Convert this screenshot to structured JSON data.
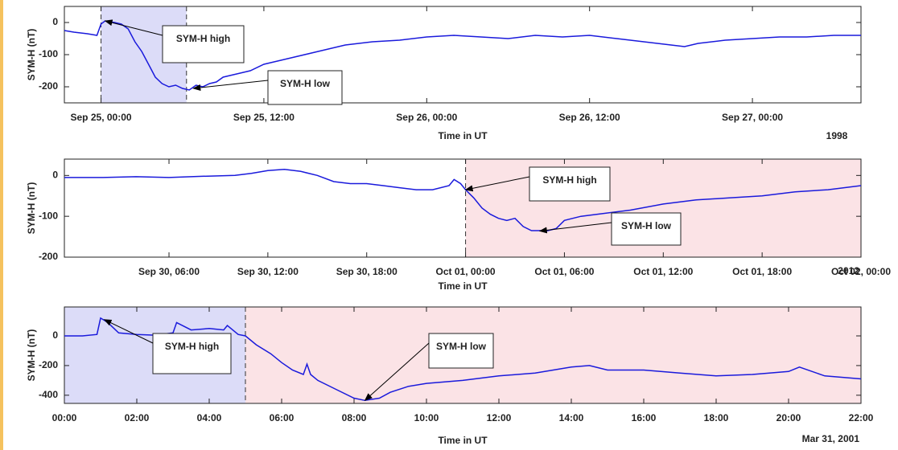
{
  "chart_data": [
    {
      "type": "line",
      "ylabel": "SYM-H (nT)",
      "xlabel": "Time in UT",
      "note": "1998",
      "color": "#1a1adc",
      "xlim": [
        -2.7,
        56
      ],
      "ylim": [
        -250,
        50
      ],
      "yticks": [
        -200,
        -100,
        0
      ],
      "xticks": [
        {
          "value": 0,
          "label": "Sep 25, 00:00"
        },
        {
          "value": 12,
          "label": "Sep 25, 12:00"
        },
        {
          "value": 24,
          "label": "Sep 26, 00:00"
        },
        {
          "value": 36,
          "label": "Sep 26, 12:00"
        },
        {
          "value": 48,
          "label": "Sep 27, 00:00"
        }
      ],
      "shaded": [
        {
          "from": 0,
          "to": 6.3,
          "color": "#dcdcf8"
        }
      ],
      "annotations": [
        {
          "text": "SYM-H high",
          "x": 0.3,
          "y": 5
        },
        {
          "text": "SYM-H low",
          "x": 6.8,
          "y": -205
        }
      ],
      "x": [
        -2.7,
        -2,
        -1,
        -0.3,
        0,
        0.3,
        1,
        1.5,
        2,
        2.5,
        3,
        3.5,
        4,
        4.5,
        5,
        5.5,
        6,
        6.5,
        7,
        7.5,
        8,
        8.5,
        9,
        10,
        11,
        12,
        13,
        14,
        16,
        18,
        20,
        22,
        24,
        26,
        28,
        30,
        32,
        34,
        36,
        38,
        40,
        42,
        43,
        44,
        46,
        48,
        50,
        52,
        54,
        56
      ],
      "values": [
        -25,
        -30,
        -35,
        -40,
        -5,
        5,
        0,
        -5,
        -20,
        -60,
        -90,
        -130,
        -170,
        -190,
        -200,
        -195,
        -205,
        -210,
        -195,
        -200,
        -190,
        -185,
        -170,
        -160,
        -150,
        -130,
        -120,
        -110,
        -90,
        -70,
        -60,
        -55,
        -45,
        -40,
        -45,
        -50,
        -40,
        -45,
        -40,
        -50,
        -60,
        -70,
        -75,
        -65,
        -55,
        -50,
        -45,
        -45,
        -40,
        -40
      ]
    },
    {
      "type": "line",
      "ylabel": "SYM-H (nT)",
      "xlabel": "Time in UT",
      "note": "2012",
      "color": "#1a1adc",
      "xlim": [
        -0.35,
        48
      ],
      "ylim": [
        -200,
        40
      ],
      "yticks": [
        -200,
        -100,
        0
      ],
      "xticks": [
        {
          "value": 6,
          "label": "Sep 30, 06:00"
        },
        {
          "value": 12,
          "label": "Sep 30, 12:00"
        },
        {
          "value": 18,
          "label": "Sep 30, 18:00"
        },
        {
          "value": 24,
          "label": "Oct 01, 00:00"
        },
        {
          "value": 30,
          "label": "Oct 01, 06:00"
        },
        {
          "value": 36,
          "label": "Oct 01, 12:00"
        },
        {
          "value": 42,
          "label": "Oct 01, 18:00"
        },
        {
          "value": 48,
          "label": "Oct 02, 00:00"
        }
      ],
      "shaded": [
        {
          "from": 24,
          "to": 48,
          "color": "#fbe3e6"
        }
      ],
      "annotations": [
        {
          "text": "SYM-H high",
          "x": 24,
          "y": -35
        },
        {
          "text": "SYM-H low",
          "x": 28.5,
          "y": -136
        }
      ],
      "x": [
        -0.35,
        2,
        4,
        6,
        8,
        10,
        11,
        12,
        13,
        14,
        15,
        16,
        17,
        18,
        19,
        20,
        21,
        22,
        23,
        23.3,
        23.7,
        24,
        24.5,
        25,
        25.5,
        26,
        26.5,
        27,
        27.5,
        28,
        29,
        29.5,
        30,
        31,
        32,
        34,
        36,
        38,
        40,
        42,
        44,
        46,
        48
      ],
      "values": [
        -5,
        -5,
        -3,
        -5,
        -2,
        0,
        5,
        12,
        15,
        10,
        0,
        -15,
        -20,
        -20,
        -25,
        -30,
        -35,
        -35,
        -25,
        -10,
        -20,
        -35,
        -55,
        -80,
        -95,
        -105,
        -110,
        -105,
        -125,
        -135,
        -135,
        -130,
        -110,
        -100,
        -95,
        -85,
        -70,
        -60,
        -55,
        -50,
        -40,
        -35,
        -25
      ]
    },
    {
      "type": "line",
      "ylabel": "SYM-H (nT)",
      "xlabel": "Time in UT",
      "note": "Mar 31, 2001",
      "color": "#1a1adc",
      "xlim": [
        0,
        22
      ],
      "ylim": [
        -455,
        195
      ],
      "yticks": [
        -400,
        -200,
        0
      ],
      "xticks": [
        {
          "value": 0,
          "label": "00:00"
        },
        {
          "value": 2,
          "label": "02:00"
        },
        {
          "value": 4,
          "label": "04:00"
        },
        {
          "value": 6,
          "label": "06:00"
        },
        {
          "value": 8,
          "label": "08:00"
        },
        {
          "value": 10,
          "label": "10:00"
        },
        {
          "value": 12,
          "label": "12:00"
        },
        {
          "value": 14,
          "label": "14:00"
        },
        {
          "value": 16,
          "label": "16:00"
        },
        {
          "value": 18,
          "label": "18:00"
        },
        {
          "value": 20,
          "label": "20:00"
        },
        {
          "value": 22,
          "label": "22:00"
        }
      ],
      "shaded": [
        {
          "from": 0,
          "to": 5,
          "color": "#dcdcf8"
        },
        {
          "from": 5,
          "to": 22,
          "color": "#fbe3e6"
        }
      ],
      "annotations": [
        {
          "text": "SYM-H high",
          "x": 1.1,
          "y": 110
        },
        {
          "text": "SYM-H low",
          "x": 8.3,
          "y": -435
        }
      ],
      "x": [
        0,
        0.5,
        0.9,
        1,
        1.2,
        1.5,
        2,
        2.5,
        3,
        3.1,
        3.5,
        4,
        4.4,
        4.5,
        4.8,
        5,
        5.3,
        5.7,
        6,
        6.3,
        6.6,
        6.7,
        6.8,
        7,
        7.5,
        8,
        8.3,
        8.7,
        9,
        9.5,
        10,
        11,
        12,
        13,
        14,
        14.5,
        15,
        16,
        17,
        18,
        19,
        20,
        20.3,
        21,
        22
      ],
      "values": [
        0,
        0,
        10,
        120,
        90,
        20,
        10,
        5,
        20,
        90,
        40,
        50,
        40,
        70,
        10,
        0,
        -60,
        -120,
        -180,
        -230,
        -260,
        -190,
        -260,
        -300,
        -360,
        -420,
        -435,
        -420,
        -380,
        -340,
        -320,
        -300,
        -270,
        -250,
        -210,
        -200,
        -230,
        -230,
        -250,
        -270,
        -260,
        -240,
        -210,
        -270,
        -290
      ]
    }
  ]
}
